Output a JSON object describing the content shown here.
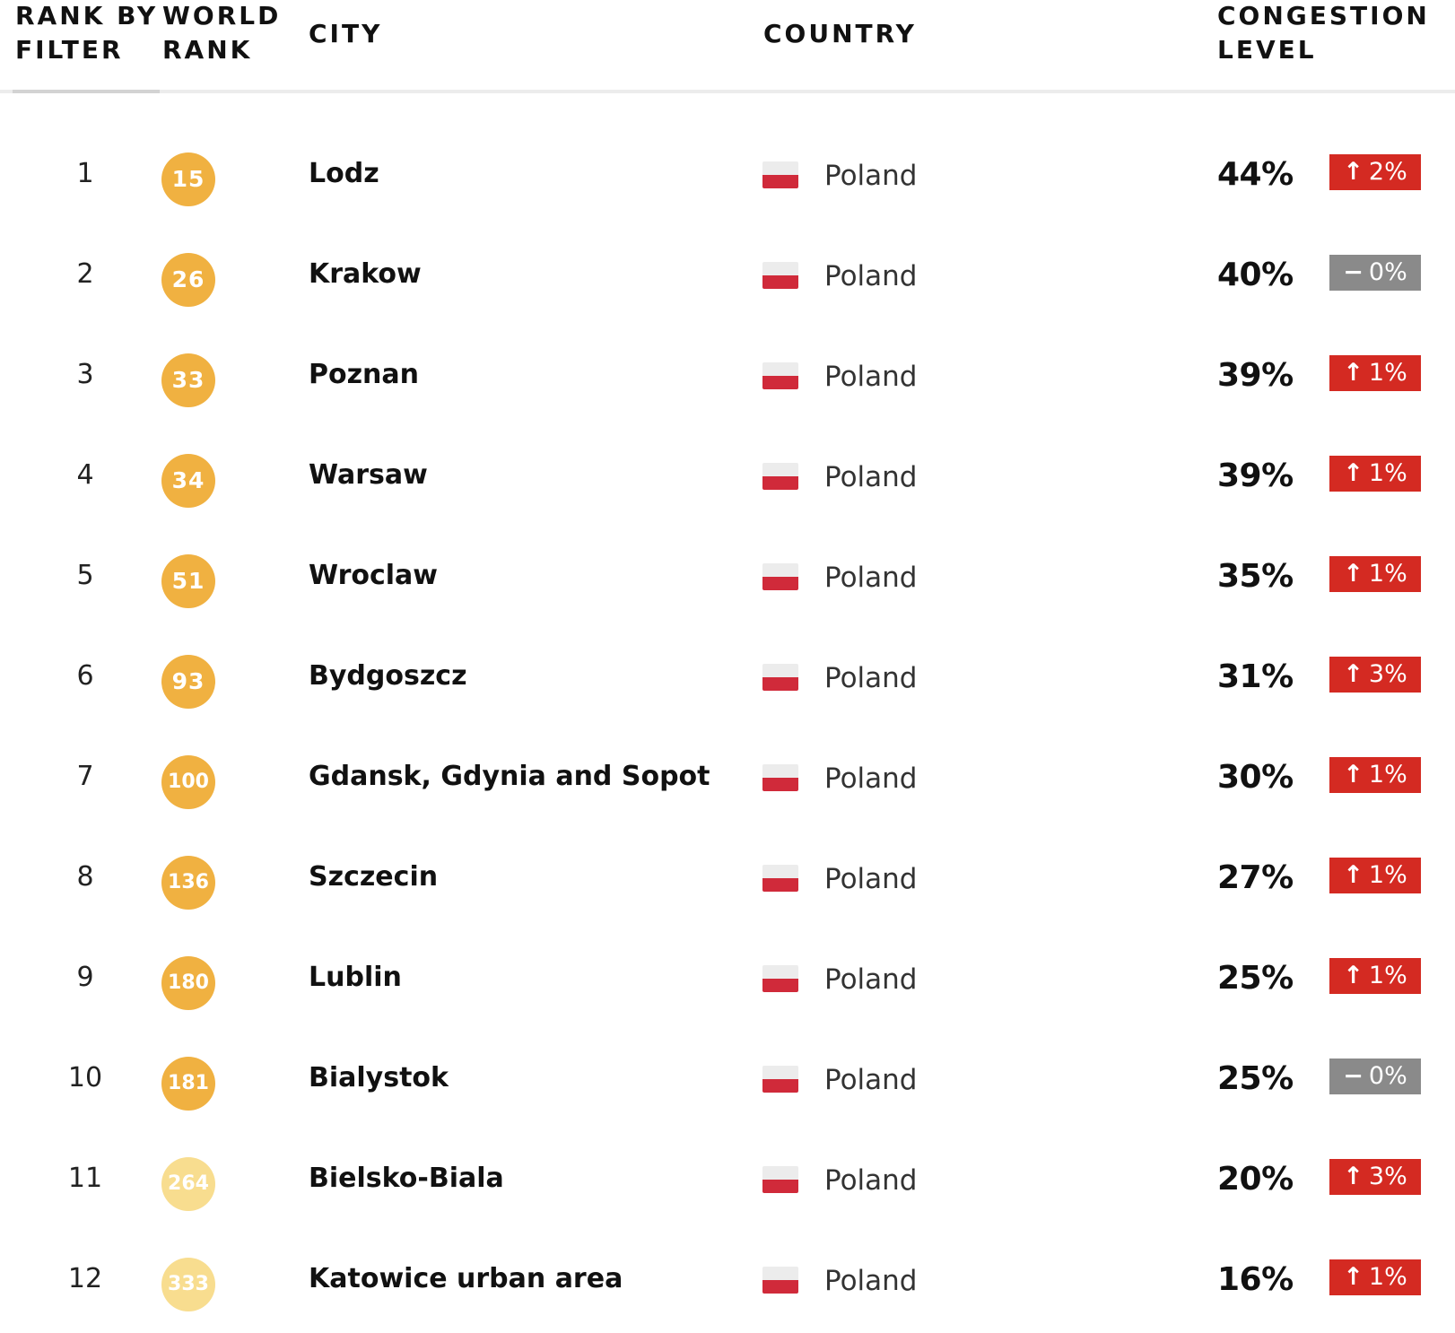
{
  "headers": {
    "rank_by_filter": "RANK BY\nFILTER",
    "world_rank": "WORLD\nRANK",
    "city": "CITY",
    "country": "COUNTRY",
    "congestion_level": "CONGESTION\nLEVEL"
  },
  "colors": {
    "badge_primary": "#f0b141",
    "badge_light": "#f8dd8f",
    "delta_up": "#d42a22",
    "delta_neutral": "#8a8a8a",
    "flag_white": "#ececec",
    "flag_red": "#d02a3a"
  },
  "rows": [
    {
      "rank": "1",
      "world_rank": "15",
      "badge_style": "primary",
      "city": "Lodz",
      "flag_icon": "poland-flag-icon",
      "country": "Poland",
      "congestion": "44%",
      "delta_icon": "arrow-up-icon",
      "delta_symbol": "↑",
      "delta": "2%",
      "delta_type": "up"
    },
    {
      "rank": "2",
      "world_rank": "26",
      "badge_style": "primary",
      "city": "Krakow",
      "flag_icon": "poland-flag-icon",
      "country": "Poland",
      "congestion": "40%",
      "delta_icon": "dash-icon",
      "delta_symbol": "−",
      "delta": "0%",
      "delta_type": "neutral"
    },
    {
      "rank": "3",
      "world_rank": "33",
      "badge_style": "primary",
      "city": "Poznan",
      "flag_icon": "poland-flag-icon",
      "country": "Poland",
      "congestion": "39%",
      "delta_icon": "arrow-up-icon",
      "delta_symbol": "↑",
      "delta": "1%",
      "delta_type": "up"
    },
    {
      "rank": "4",
      "world_rank": "34",
      "badge_style": "primary",
      "city": "Warsaw",
      "flag_icon": "poland-flag-icon",
      "country": "Poland",
      "congestion": "39%",
      "delta_icon": "arrow-up-icon",
      "delta_symbol": "↑",
      "delta": "1%",
      "delta_type": "up"
    },
    {
      "rank": "5",
      "world_rank": "51",
      "badge_style": "primary",
      "city": "Wroclaw",
      "flag_icon": "poland-flag-icon",
      "country": "Poland",
      "congestion": "35%",
      "delta_icon": "arrow-up-icon",
      "delta_symbol": "↑",
      "delta": "1%",
      "delta_type": "up"
    },
    {
      "rank": "6",
      "world_rank": "93",
      "badge_style": "primary",
      "city": "Bydgoszcz",
      "flag_icon": "poland-flag-icon",
      "country": "Poland",
      "congestion": "31%",
      "delta_icon": "arrow-up-icon",
      "delta_symbol": "↑",
      "delta": "3%",
      "delta_type": "up"
    },
    {
      "rank": "7",
      "world_rank": "100",
      "badge_style": "primary",
      "city": "Gdansk, Gdynia and Sopot",
      "flag_icon": "poland-flag-icon",
      "country": "Poland",
      "congestion": "30%",
      "delta_icon": "arrow-up-icon",
      "delta_symbol": "↑",
      "delta": "1%",
      "delta_type": "up"
    },
    {
      "rank": "8",
      "world_rank": "136",
      "badge_style": "primary",
      "city": "Szczecin",
      "flag_icon": "poland-flag-icon",
      "country": "Poland",
      "congestion": "27%",
      "delta_icon": "arrow-up-icon",
      "delta_symbol": "↑",
      "delta": "1%",
      "delta_type": "up"
    },
    {
      "rank": "9",
      "world_rank": "180",
      "badge_style": "primary",
      "city": "Lublin",
      "flag_icon": "poland-flag-icon",
      "country": "Poland",
      "congestion": "25%",
      "delta_icon": "arrow-up-icon",
      "delta_symbol": "↑",
      "delta": "1%",
      "delta_type": "up"
    },
    {
      "rank": "10",
      "world_rank": "181",
      "badge_style": "primary",
      "city": "Bialystok",
      "flag_icon": "poland-flag-icon",
      "country": "Poland",
      "congestion": "25%",
      "delta_icon": "dash-icon",
      "delta_symbol": "−",
      "delta": "0%",
      "delta_type": "neutral"
    },
    {
      "rank": "11",
      "world_rank": "264",
      "badge_style": "light",
      "city": "Bielsko-Biala",
      "flag_icon": "poland-flag-icon",
      "country": "Poland",
      "congestion": "20%",
      "delta_icon": "arrow-up-icon",
      "delta_symbol": "↑",
      "delta": "3%",
      "delta_type": "up"
    },
    {
      "rank": "12",
      "world_rank": "333",
      "badge_style": "light",
      "city": "Katowice urban area",
      "flag_icon": "poland-flag-icon",
      "country": "Poland",
      "congestion": "16%",
      "delta_icon": "arrow-up-icon",
      "delta_symbol": "↑",
      "delta": "1%",
      "delta_type": "up"
    }
  ]
}
